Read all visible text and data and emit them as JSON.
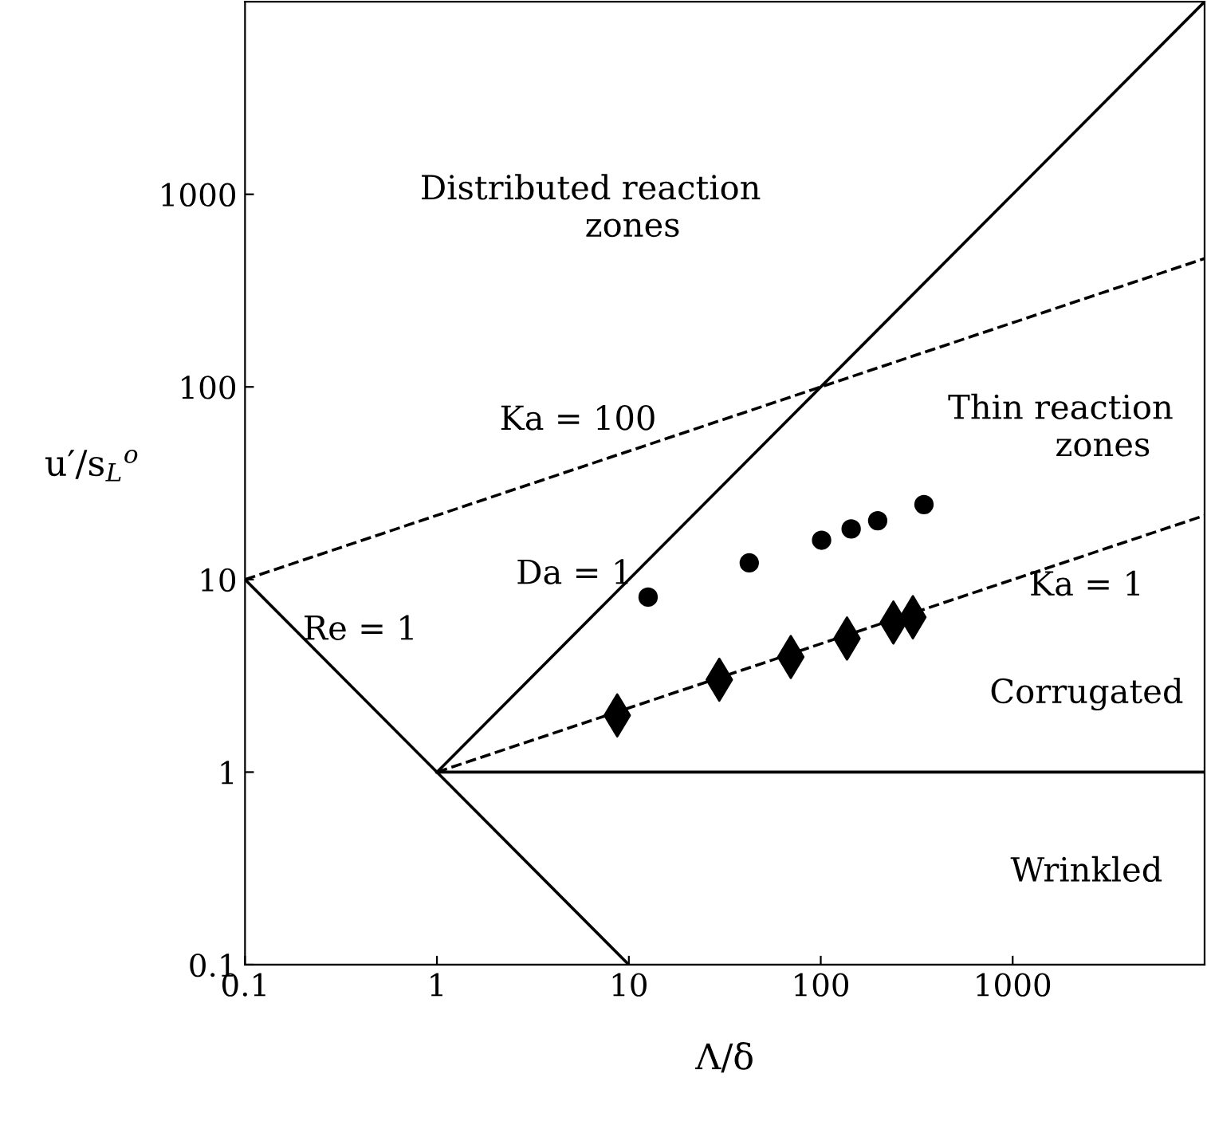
{
  "chart_data": {
    "type": "scatter",
    "xlabel": "Λ/δ",
    "ylabel": "u′/s$_{L}$$^{o}$",
    "log": "xy",
    "xlim": [
      0.1,
      10000
    ],
    "ylim": [
      0.1,
      10000
    ],
    "xticks": [
      0.1,
      1,
      10,
      100,
      1000
    ],
    "yticks": [
      0.1,
      1,
      10,
      100,
      1000
    ],
    "grid": false,
    "legend": false,
    "series": [
      {
        "type": "line",
        "color": "#000000",
        "line_style": "solid",
        "x": [
          0.1,
          10
        ],
        "values": [
          10,
          0.1
        ]
      },
      {
        "type": "line",
        "color": "#000000",
        "line_style": "solid",
        "x": [
          1,
          10000
        ],
        "values": [
          1,
          10000
        ]
      },
      {
        "type": "line",
        "color": "#000000",
        "line_style": "solid",
        "x": [
          1,
          10000
        ],
        "values": [
          1,
          1
        ]
      },
      {
        "type": "line",
        "color": "#000000",
        "line_style": "dashed",
        "x": [
          1,
          10000
        ],
        "values": [
          1,
          21.5
        ]
      },
      {
        "type": "line",
        "color": "#000000",
        "line_style": "dashed",
        "x": [
          0.1,
          10000
        ],
        "values": [
          10,
          464
        ]
      },
      {
        "color": "#000000",
        "marker": "circle",
        "x": [
          12.6,
          42.4,
          101,
          144,
          198,
          345
        ],
        "values": [
          8.1,
          12.2,
          16.0,
          18.3,
          20.2,
          24.5
        ]
      },
      {
        "color": "#000000",
        "marker": "diamond",
        "x": [
          8.7,
          29.6,
          69.8,
          137,
          239,
          302
        ],
        "values": [
          1.97,
          3.02,
          3.96,
          4.94,
          5.98,
          6.37
        ]
      }
    ],
    "annotations": [
      "Ka = 100",
      "Da = 1",
      "Re = 1",
      "Ka = 1",
      "Distributed reaction\n        zones",
      "Thin reaction\n        zones",
      "Corrugated",
      "Wrinkled"
    ]
  }
}
